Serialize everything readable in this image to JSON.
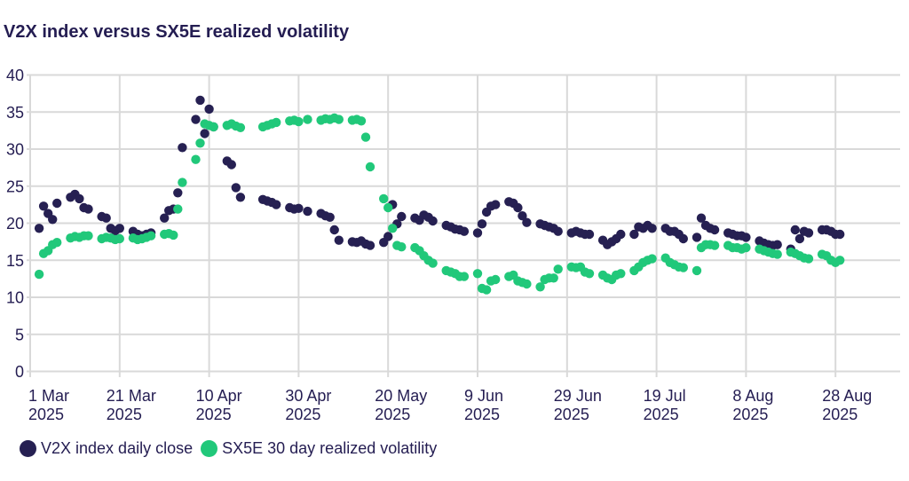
{
  "title": "V2X index versus SX5E realized volatility",
  "colors": {
    "navy": "#262052",
    "green": "#21c87a",
    "grid": "#d9d9d9",
    "text": "#241d52",
    "background": "#ffffff"
  },
  "chart_data": {
    "type": "scatter",
    "title": "V2X index versus SX5E realized volatility",
    "xlabel": "",
    "ylabel": "",
    "ylim": [
      0,
      40
    ],
    "y_ticks": [
      0,
      5,
      10,
      15,
      20,
      25,
      30,
      35,
      40
    ],
    "grid": true,
    "legend_position": "bottom",
    "x_ticks": [
      {
        "label": "1 Mar",
        "year": "2025",
        "date": "2025-03-01"
      },
      {
        "label": "21 Mar",
        "year": "2025",
        "date": "2025-03-21"
      },
      {
        "label": "10 Apr",
        "year": "2025",
        "date": "2025-04-10"
      },
      {
        "label": "30 Apr",
        "year": "2025",
        "date": "2025-04-30"
      },
      {
        "label": "20 May",
        "year": "2025",
        "date": "2025-05-20"
      },
      {
        "label": "9 Jun",
        "year": "2025",
        "date": "2025-06-09"
      },
      {
        "label": "29 Jun",
        "year": "2025",
        "date": "2025-06-29"
      },
      {
        "label": "19 Jul",
        "year": "2025",
        "date": "2025-07-19"
      },
      {
        "label": "8 Aug",
        "year": "2025",
        "date": "2025-08-08"
      },
      {
        "label": "28 Aug",
        "year": "2025",
        "date": "2025-08-28"
      }
    ],
    "dates": [
      "2025-03-03",
      "2025-03-04",
      "2025-03-05",
      "2025-03-06",
      "2025-03-07",
      "2025-03-10",
      "2025-03-11",
      "2025-03-12",
      "2025-03-13",
      "2025-03-14",
      "2025-03-17",
      "2025-03-18",
      "2025-03-19",
      "2025-03-20",
      "2025-03-21",
      "2025-03-24",
      "2025-03-25",
      "2025-03-26",
      "2025-03-27",
      "2025-03-28",
      "2025-03-31",
      "2025-04-01",
      "2025-04-02",
      "2025-04-03",
      "2025-04-04",
      "2025-04-07",
      "2025-04-08",
      "2025-04-09",
      "2025-04-10",
      "2025-04-11",
      "2025-04-14",
      "2025-04-15",
      "2025-04-16",
      "2025-04-17",
      "2025-04-22",
      "2025-04-23",
      "2025-04-24",
      "2025-04-25",
      "2025-04-28",
      "2025-04-29",
      "2025-04-30",
      "2025-05-02",
      "2025-05-05",
      "2025-05-06",
      "2025-05-07",
      "2025-05-08",
      "2025-05-09",
      "2025-05-12",
      "2025-05-13",
      "2025-05-14",
      "2025-05-15",
      "2025-05-16",
      "2025-05-19",
      "2025-05-20",
      "2025-05-21",
      "2025-05-22",
      "2025-05-23",
      "2025-05-26",
      "2025-05-27",
      "2025-05-28",
      "2025-05-29",
      "2025-05-30",
      "2025-06-02",
      "2025-06-03",
      "2025-06-04",
      "2025-06-05",
      "2025-06-06",
      "2025-06-09",
      "2025-06-10",
      "2025-06-11",
      "2025-06-12",
      "2025-06-13",
      "2025-06-16",
      "2025-06-17",
      "2025-06-18",
      "2025-06-19",
      "2025-06-20",
      "2025-06-23",
      "2025-06-24",
      "2025-06-25",
      "2025-06-26",
      "2025-06-27",
      "2025-06-30",
      "2025-07-01",
      "2025-07-02",
      "2025-07-03",
      "2025-07-04",
      "2025-07-07",
      "2025-07-08",
      "2025-07-09",
      "2025-07-10",
      "2025-07-11",
      "2025-07-14",
      "2025-07-15",
      "2025-07-16",
      "2025-07-17",
      "2025-07-18",
      "2025-07-21",
      "2025-07-22",
      "2025-07-23",
      "2025-07-24",
      "2025-07-25",
      "2025-07-28",
      "2025-07-29",
      "2025-07-30",
      "2025-07-31",
      "2025-08-01",
      "2025-08-04",
      "2025-08-05",
      "2025-08-06",
      "2025-08-07",
      "2025-08-08",
      "2025-08-11",
      "2025-08-12",
      "2025-08-13",
      "2025-08-14",
      "2025-08-15",
      "2025-08-18",
      "2025-08-19",
      "2025-08-20",
      "2025-08-21",
      "2025-08-22",
      "2025-08-25",
      "2025-08-26",
      "2025-08-27",
      "2025-08-28",
      "2025-08-29"
    ],
    "series": [
      {
        "name": "V2X index daily close",
        "color": "#262052",
        "values": [
          19.3,
          22.3,
          21.3,
          20.5,
          22.7,
          23.5,
          23.9,
          23.3,
          22.1,
          21.9,
          20.9,
          20.7,
          19.3,
          19.0,
          19.3,
          18.9,
          18.5,
          18.3,
          18.5,
          18.7,
          20.7,
          21.7,
          21.9,
          24.1,
          30.2,
          34.0,
          36.6,
          32.1,
          35.4,
          33.0,
          28.4,
          27.9,
          24.8,
          23.5,
          23.2,
          23.0,
          22.8,
          22.5,
          22.1,
          21.9,
          22.0,
          21.6,
          21.3,
          21.0,
          20.8,
          19.1,
          17.7,
          17.5,
          17.4,
          17.6,
          17.2,
          17.0,
          17.4,
          18.2,
          22.5,
          19.9,
          20.9,
          20.7,
          20.4,
          21.1,
          20.8,
          20.3,
          19.7,
          19.5,
          19.2,
          19.1,
          18.9,
          18.7,
          19.9,
          21.5,
          22.3,
          22.5,
          22.9,
          22.7,
          22.1,
          21.0,
          20.1,
          19.9,
          19.7,
          19.5,
          19.3,
          18.9,
          18.7,
          18.9,
          18.7,
          18.5,
          18.5,
          17.7,
          17.1,
          17.5,
          17.9,
          18.5,
          18.5,
          19.5,
          19.3,
          19.7,
          19.3,
          19.3,
          18.9,
          18.9,
          18.5,
          17.9,
          18.1,
          20.7,
          19.7,
          19.3,
          19.1,
          18.7,
          18.5,
          18.3,
          18.3,
          18.1,
          17.6,
          17.3,
          17.1,
          17.0,
          17.1,
          16.5,
          19.1,
          17.9,
          18.9,
          18.7,
          19.1,
          19.1,
          18.9,
          18.5,
          18.5
        ]
      },
      {
        "name": "SX5E 30 day realized volatility",
        "color": "#21c87a",
        "values": [
          13.1,
          15.9,
          16.3,
          17.1,
          17.4,
          18.0,
          18.2,
          18.1,
          18.3,
          18.3,
          17.9,
          18.1,
          18.0,
          17.8,
          17.9,
          18.0,
          17.8,
          17.9,
          18.1,
          18.3,
          18.5,
          18.6,
          18.4,
          21.9,
          25.5,
          28.6,
          30.8,
          33.4,
          33.2,
          33.0,
          33.2,
          33.4,
          33.1,
          32.9,
          33.0,
          33.2,
          33.4,
          33.6,
          33.8,
          33.9,
          33.7,
          34.0,
          33.9,
          34.1,
          34.0,
          34.2,
          34.0,
          33.9,
          34.0,
          33.8,
          31.6,
          27.6,
          23.3,
          22.1,
          19.3,
          17.0,
          16.8,
          16.7,
          16.3,
          15.6,
          15.0,
          14.6,
          13.6,
          13.4,
          13.2,
          12.8,
          12.8,
          13.2,
          11.2,
          11.0,
          12.2,
          12.4,
          12.8,
          13.0,
          12.2,
          12.0,
          11.8,
          11.4,
          12.4,
          12.6,
          12.6,
          13.8,
          14.1,
          14.0,
          14.1,
          13.4,
          13.2,
          13.0,
          12.6,
          12.4,
          13.0,
          13.2,
          13.6,
          14.1,
          14.7,
          15.0,
          15.2,
          15.3,
          14.7,
          14.4,
          14.1,
          14.0,
          13.6,
          16.7,
          17.1,
          17.1,
          17.0,
          17.0,
          16.7,
          16.7,
          16.5,
          16.7,
          16.5,
          16.3,
          16.1,
          15.9,
          15.8,
          16.1,
          15.9,
          15.6,
          15.3,
          15.2,
          15.8,
          15.6,
          15.0,
          14.7,
          15.0
        ]
      }
    ]
  },
  "legend": {
    "items": [
      {
        "label": "V2X index daily close"
      },
      {
        "label": "SX5E 30 day realized volatility"
      }
    ]
  }
}
